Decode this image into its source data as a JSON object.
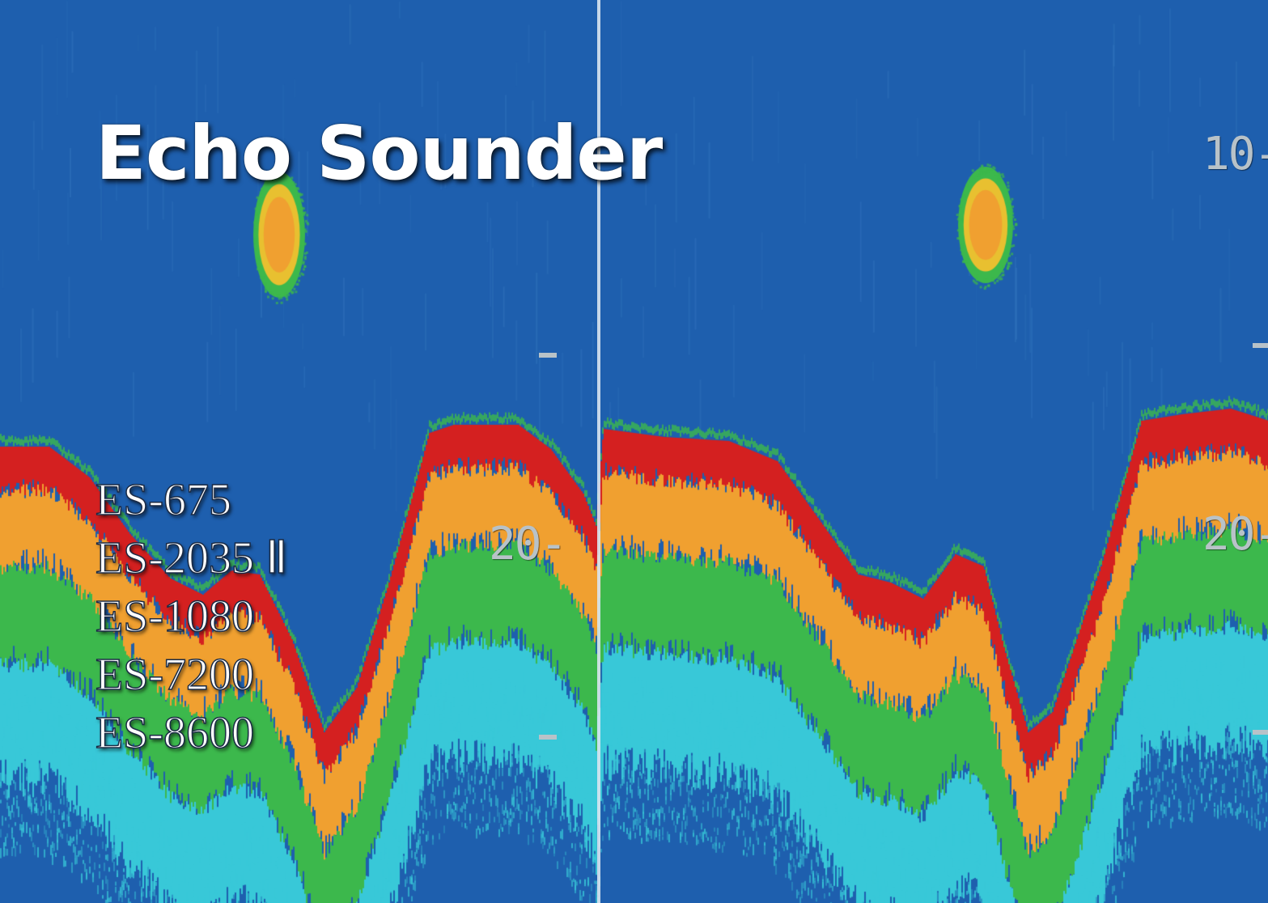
{
  "title": "Echo Sounder",
  "models": [
    "ES-675",
    "ES-2035 Ⅱ",
    "ES-1080",
    "ES-7200",
    "ES-8600"
  ],
  "depth_scale": {
    "left_20": "20-",
    "right_10": "10-",
    "right_20": "20-"
  },
  "colors": {
    "background": "#1e5fae",
    "strong_echo": "#d42020",
    "medium_echo": "#f0a030",
    "weak_echo": "#3cb84c",
    "faint_echo": "#38c8d8"
  }
}
